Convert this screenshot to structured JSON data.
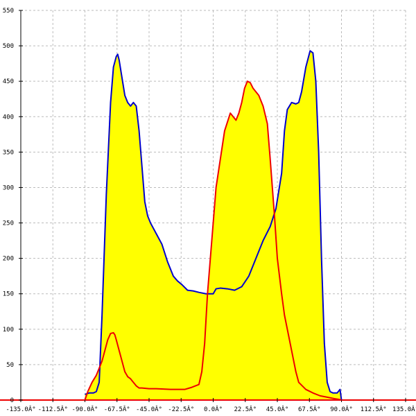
{
  "colors": {
    "background": "#ffffff",
    "grid": "#bbbbbb",
    "axis": "#000000",
    "fill": "#ffff00",
    "blue_curve": "#0000cc",
    "red_curve": "#ee0000"
  },
  "chart_data": {
    "type": "area",
    "xlim": [
      -135,
      135
    ],
    "ylim": [
      0,
      550
    ],
    "grid": true,
    "x_ticks": [
      -135,
      -112.5,
      -90,
      -67.5,
      -45,
      -22.5,
      0,
      22.5,
      45,
      67.5,
      90,
      112.5,
      135
    ],
    "x_tick_labels": [
      "-135.0Â°",
      "-112.5Â°",
      "-90.0Â°",
      "-67.5Â°",
      "-45.0Â°",
      "-22.5Â°",
      "0.0Â°",
      "22.5Â°",
      "45.0Â°",
      "67.5Â°",
      "90.0Â°",
      "112.5Â°",
      "135.0Â°"
    ],
    "y_ticks": [
      0,
      50,
      100,
      150,
      200,
      250,
      300,
      350,
      400,
      450,
      500,
      550
    ],
    "y_tick_labels": [
      "0",
      "50",
      "100",
      "150",
      "200",
      "250",
      "300",
      "350",
      "400",
      "450",
      "500",
      "550"
    ],
    "series": [
      {
        "color": "#0000cc",
        "x": [
          -90,
          -87,
          -84,
          -82,
          -80,
          -78,
          -75,
          -72,
          -70,
          -68,
          -67,
          -66,
          -64,
          -62,
          -60,
          -58,
          -56,
          -54,
          -52,
          -50,
          -48,
          -46,
          -44,
          -40,
          -36,
          -32,
          -28,
          -25,
          -22,
          -18,
          -14,
          -10,
          -5,
          0,
          2,
          5,
          10,
          15,
          20,
          25,
          30,
          35,
          40,
          44,
          48,
          50,
          52,
          55,
          58,
          60,
          62,
          65,
          68,
          70,
          72,
          74,
          76,
          78,
          80,
          82,
          84,
          87,
          89,
          90
        ],
        "y": [
          8,
          10,
          10,
          12,
          25,
          120,
          290,
          420,
          470,
          485,
          488,
          480,
          455,
          430,
          420,
          415,
          420,
          415,
          380,
          330,
          280,
          260,
          250,
          235,
          220,
          195,
          175,
          168,
          163,
          155,
          154,
          152,
          150,
          150,
          157,
          158,
          157,
          155,
          160,
          175,
          200,
          225,
          245,
          270,
          320,
          380,
          410,
          420,
          418,
          420,
          435,
          470,
          493,
          490,
          450,
          350,
          200,
          80,
          25,
          12,
          10,
          10,
          15,
          0
        ]
      },
      {
        "color": "#ee0000",
        "x": [
          -90,
          -88,
          -85,
          -82,
          -80,
          -78,
          -76,
          -74,
          -72,
          -70,
          -69,
          -68,
          -66,
          -64,
          -62,
          -60,
          -58,
          -56,
          -54,
          -52,
          -50,
          -45,
          -40,
          -30,
          -20,
          -15,
          -10,
          -8,
          -6,
          -4,
          -2,
          0,
          2,
          5,
          8,
          12,
          14,
          16,
          18,
          20,
          22,
          24,
          26,
          28,
          30,
          32,
          35,
          38,
          40,
          43,
          45,
          48,
          50,
          52,
          55,
          58,
          60,
          65,
          70,
          75,
          80,
          85,
          88,
          90
        ],
        "y": [
          0,
          12,
          25,
          35,
          45,
          55,
          70,
          85,
          94,
          95,
          92,
          85,
          70,
          55,
          40,
          33,
          30,
          25,
          20,
          17,
          17,
          16,
          16,
          15,
          15,
          18,
          22,
          40,
          80,
          150,
          200,
          250,
          300,
          340,
          380,
          405,
          400,
          395,
          405,
          420,
          440,
          450,
          448,
          440,
          435,
          430,
          415,
          390,
          340,
          260,
          200,
          150,
          120,
          100,
          70,
          40,
          25,
          15,
          10,
          6,
          4,
          2,
          1,
          0
        ]
      }
    ]
  }
}
